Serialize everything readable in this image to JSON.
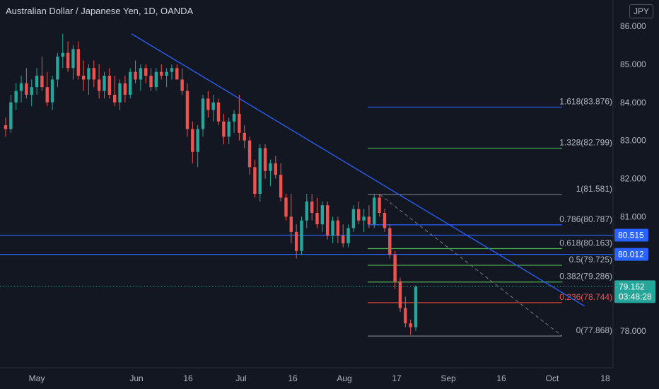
{
  "header": {
    "title": "Australian Dollar / Japanese Yen, 1D, OANDA",
    "currency": "JPY"
  },
  "chart_data": {
    "type": "candlestick",
    "symbol": "AUDJPY",
    "timeframe": "1D",
    "ylim": [
      77.0,
      86.5
    ],
    "y_ticks": [
      "86.000",
      "85.000",
      "84.000",
      "83.000",
      "82.000",
      "81.000",
      "78.000"
    ],
    "x_ticks": [
      "May",
      "Jun",
      "16",
      "Jul",
      "16",
      "Aug",
      "17",
      "Sep",
      "16",
      "Oct",
      "18"
    ],
    "colors": {
      "up": "#26a69a",
      "down": "#ef5350",
      "trendline": "#2962ff",
      "background": "#131722"
    },
    "candles": [
      [
        83.4,
        83.6,
        83.1,
        83.3
      ],
      [
        83.3,
        84.2,
        83.2,
        84.0
      ],
      [
        84.0,
        84.5,
        83.8,
        84.3
      ],
      [
        84.3,
        84.7,
        84.0,
        84.5
      ],
      [
        84.5,
        84.9,
        84.1,
        84.2
      ],
      [
        84.2,
        84.6,
        83.9,
        84.4
      ],
      [
        84.4,
        84.9,
        84.2,
        84.7
      ],
      [
        84.7,
        85.2,
        84.3,
        84.4
      ],
      [
        84.4,
        84.8,
        83.9,
        84.0
      ],
      [
        84.0,
        84.7,
        83.8,
        84.6
      ],
      [
        84.6,
        85.3,
        84.4,
        85.2
      ],
      [
        85.2,
        85.8,
        84.9,
        85.3
      ],
      [
        85.3,
        85.6,
        84.8,
        84.9
      ],
      [
        84.9,
        85.5,
        84.6,
        85.4
      ],
      [
        85.4,
        85.6,
        84.6,
        84.7
      ],
      [
        84.7,
        85.1,
        84.3,
        84.6
      ],
      [
        84.6,
        85.0,
        84.2,
        84.9
      ],
      [
        84.9,
        85.1,
        84.4,
        84.6
      ],
      [
        84.6,
        85.0,
        84.1,
        84.3
      ],
      [
        84.3,
        84.8,
        84.1,
        84.7
      ],
      [
        84.7,
        84.9,
        84.1,
        84.2
      ],
      [
        84.2,
        84.7,
        83.9,
        84.0
      ],
      [
        84.0,
        84.6,
        83.8,
        84.5
      ],
      [
        84.5,
        84.7,
        84.0,
        84.2
      ],
      [
        84.2,
        84.9,
        84.1,
        84.8
      ],
      [
        84.8,
        85.1,
        84.5,
        84.6
      ],
      [
        84.6,
        85.0,
        84.3,
        84.9
      ],
      [
        84.9,
        85.0,
        84.5,
        84.7
      ],
      [
        84.7,
        84.9,
        84.3,
        84.4
      ],
      [
        84.4,
        84.9,
        84.3,
        84.8
      ],
      [
        84.8,
        85.0,
        84.6,
        84.7
      ],
      [
        84.7,
        84.9,
        84.4,
        84.8
      ],
      [
        84.8,
        85.0,
        84.6,
        84.9
      ],
      [
        84.9,
        85.0,
        84.6,
        84.6
      ],
      [
        84.6,
        84.9,
        84.2,
        84.3
      ],
      [
        84.3,
        84.5,
        83.1,
        83.3
      ],
      [
        83.3,
        83.5,
        82.4,
        82.7
      ],
      [
        82.7,
        83.4,
        82.3,
        83.3
      ],
      [
        83.3,
        84.2,
        83.1,
        84.1
      ],
      [
        84.1,
        84.3,
        83.6,
        83.8
      ],
      [
        83.8,
        84.2,
        83.5,
        84.0
      ],
      [
        84.0,
        84.1,
        83.4,
        83.5
      ],
      [
        83.5,
        83.7,
        82.9,
        83.1
      ],
      [
        83.1,
        83.6,
        82.9,
        83.5
      ],
      [
        83.5,
        83.8,
        83.2,
        83.7
      ],
      [
        83.7,
        84.2,
        83.0,
        83.2
      ],
      [
        83.2,
        83.4,
        82.8,
        83.0
      ],
      [
        83.0,
        83.1,
        82.1,
        82.3
      ],
      [
        82.3,
        82.5,
        81.5,
        81.6
      ],
      [
        81.6,
        82.9,
        81.4,
        82.8
      ],
      [
        82.8,
        82.9,
        82.0,
        82.2
      ],
      [
        82.2,
        82.5,
        81.8,
        82.4
      ],
      [
        82.4,
        82.6,
        82.0,
        82.1
      ],
      [
        82.1,
        82.4,
        81.4,
        81.5
      ],
      [
        81.5,
        81.6,
        80.9,
        81.0
      ],
      [
        81.0,
        81.6,
        80.3,
        80.6
      ],
      [
        80.6,
        80.8,
        79.9,
        80.1
      ],
      [
        80.1,
        81.0,
        80.0,
        80.9
      ],
      [
        80.9,
        81.6,
        80.7,
        81.4
      ],
      [
        81.4,
        81.6,
        80.9,
        81.1
      ],
      [
        81.1,
        81.5,
        80.7,
        80.8
      ],
      [
        80.8,
        81.4,
        80.6,
        81.3
      ],
      [
        81.3,
        81.4,
        80.4,
        80.5
      ],
      [
        80.5,
        81.0,
        80.3,
        80.9
      ],
      [
        80.9,
        81.0,
        80.3,
        80.5
      ],
      [
        80.5,
        80.8,
        80.2,
        80.3
      ],
      [
        80.3,
        80.8,
        80.2,
        80.7
      ],
      [
        80.7,
        81.3,
        80.6,
        81.2
      ],
      [
        81.2,
        81.4,
        80.8,
        80.9
      ],
      [
        80.9,
        81.2,
        80.6,
        81.0
      ],
      [
        81.0,
        81.3,
        80.7,
        80.8
      ],
      [
        80.8,
        81.6,
        80.7,
        81.5
      ],
      [
        81.5,
        81.6,
        81.0,
        81.1
      ],
      [
        81.1,
        81.2,
        80.6,
        80.7
      ],
      [
        80.7,
        80.8,
        79.9,
        80.0
      ],
      [
        80.0,
        80.1,
        79.1,
        79.3
      ],
      [
        79.3,
        79.4,
        78.5,
        78.6
      ],
      [
        78.6,
        78.9,
        78.1,
        78.2
      ],
      [
        78.2,
        78.3,
        77.9,
        78.1
      ],
      [
        78.1,
        79.2,
        78.0,
        79.16
      ]
    ],
    "trendlines": [
      {
        "name": "downtrend-upper",
        "points": [
          [
            0.176,
            85.8
          ],
          [
            0.855,
            78.3
          ]
        ]
      }
    ],
    "horizontal_levels": [
      {
        "label": "80.515",
        "value": 80.515,
        "color": "#2962ff"
      },
      {
        "label": "80.012",
        "value": 80.012,
        "color": "#2962ff"
      }
    ],
    "fibonacci": [
      {
        "label": "1.618(83.876)",
        "value": 83.876,
        "color": "#2962ff"
      },
      {
        "label": "1.328(82.799)",
        "value": 82.799,
        "color": "#4caf50"
      },
      {
        "label": "1(81.581)",
        "value": 81.581,
        "color": "#787b86"
      },
      {
        "label": "0.786(80.787)",
        "value": 80.787,
        "color": "#2962ff"
      },
      {
        "label": "0.618(80.163)",
        "value": 80.163,
        "color": "#4caf50"
      },
      {
        "label": "0.5(79.725)",
        "value": 79.725,
        "color": "#4caf50"
      },
      {
        "label": "0.382(79.286)",
        "value": 79.286,
        "color": "#4caf50"
      },
      {
        "label": "0.236(78.744)",
        "value": 78.744,
        "color": "#f44336"
      },
      {
        "label": "0(77.868)",
        "value": 77.868,
        "color": "#787b86"
      }
    ],
    "last_price": {
      "label": "79.162",
      "value": 79.162,
      "countdown": "03:48:28",
      "color": "#26a69a"
    }
  }
}
